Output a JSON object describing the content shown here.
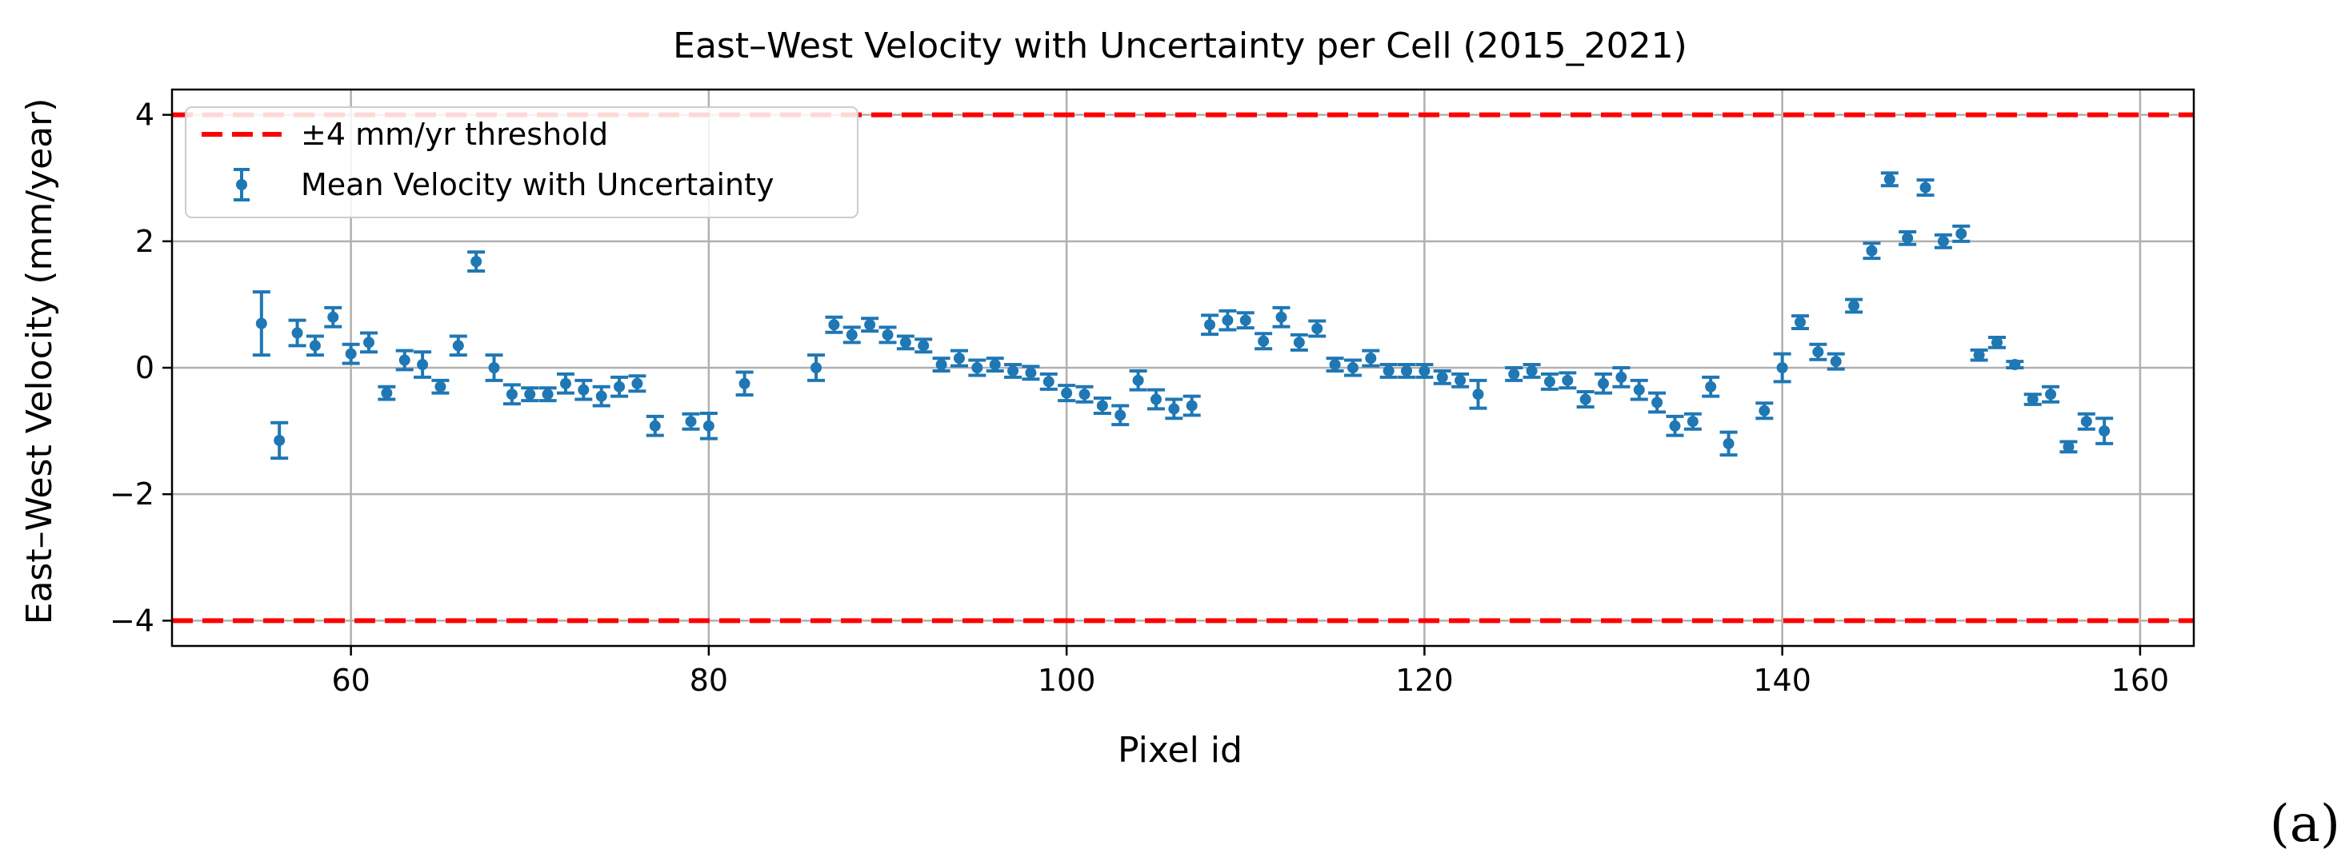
{
  "chart_data": {
    "type": "scatter",
    "title": "East–West Velocity with Uncertainty per Cell (2015_2021)",
    "xlabel": "Pixel id",
    "ylabel": "East–West Velocity (mm/year)",
    "xlim": [
      50,
      163
    ],
    "ylim": [
      -4.4,
      4.4
    ],
    "xticks": [
      60,
      80,
      100,
      120,
      140,
      160
    ],
    "yticks": [
      -4,
      -2,
      0,
      2,
      4
    ],
    "grid": true,
    "legend_position": "top-left",
    "panel_label": "(a)",
    "thresholds": {
      "label": "±4 mm/yr threshold",
      "values": [
        4,
        -4
      ],
      "color": "#ff0000"
    },
    "series": [
      {
        "name": "Mean Velocity with Uncertainty",
        "color": "#1f77b4",
        "x": [
          55,
          56,
          57,
          58,
          59,
          60,
          61,
          62,
          63,
          64,
          65,
          66,
          67,
          68,
          69,
          70,
          71,
          72,
          73,
          74,
          75,
          76,
          77,
          79,
          80,
          82,
          86,
          87,
          88,
          89,
          90,
          91,
          92,
          93,
          94,
          95,
          96,
          97,
          98,
          99,
          100,
          101,
          102,
          103,
          104,
          105,
          106,
          107,
          108,
          109,
          110,
          111,
          112,
          113,
          114,
          115,
          116,
          117,
          118,
          119,
          120,
          121,
          122,
          123,
          125,
          126,
          127,
          128,
          129,
          130,
          131,
          132,
          133,
          134,
          135,
          136,
          137,
          139,
          140,
          141,
          142,
          143,
          144,
          145,
          146,
          147,
          148,
          149,
          150,
          151,
          152,
          153,
          154,
          155,
          156,
          157,
          158
        ],
        "y": [
          0.7,
          -1.15,
          0.55,
          0.35,
          0.8,
          0.22,
          0.4,
          -0.4,
          0.12,
          0.05,
          -0.3,
          0.35,
          1.68,
          0.0,
          -0.42,
          -0.42,
          -0.42,
          -0.25,
          -0.35,
          -0.45,
          -0.3,
          -0.25,
          -0.92,
          -0.85,
          -0.92,
          -0.25,
          0.0,
          0.68,
          0.52,
          0.68,
          0.52,
          0.4,
          0.35,
          0.05,
          0.15,
          0.0,
          0.05,
          -0.05,
          -0.08,
          -0.22,
          -0.4,
          -0.42,
          -0.6,
          -0.75,
          -0.2,
          -0.5,
          -0.65,
          -0.6,
          0.68,
          0.75,
          0.75,
          0.42,
          0.8,
          0.4,
          0.62,
          0.05,
          0.0,
          0.15,
          -0.05,
          -0.05,
          -0.05,
          -0.15,
          -0.2,
          -0.42,
          -0.1,
          -0.05,
          -0.22,
          -0.2,
          -0.5,
          -0.25,
          -0.15,
          -0.35,
          -0.55,
          -0.92,
          -0.85,
          -0.3,
          -1.2,
          -0.68,
          0.0,
          0.72,
          0.25,
          0.1,
          0.98,
          1.85,
          2.98,
          2.05,
          2.85,
          2.0,
          2.12,
          0.2,
          0.4,
          0.05,
          -0.5,
          -0.42,
          -1.25,
          -0.85,
          -1.0
        ],
        "err": [
          0.5,
          0.28,
          0.2,
          0.15,
          0.15,
          0.15,
          0.15,
          0.1,
          0.15,
          0.2,
          0.1,
          0.15,
          0.15,
          0.2,
          0.15,
          0.1,
          0.1,
          0.15,
          0.15,
          0.15,
          0.15,
          0.12,
          0.15,
          0.12,
          0.2,
          0.18,
          0.2,
          0.12,
          0.12,
          0.1,
          0.12,
          0.1,
          0.1,
          0.1,
          0.12,
          0.12,
          0.1,
          0.1,
          0.1,
          0.12,
          0.12,
          0.12,
          0.12,
          0.15,
          0.15,
          0.15,
          0.15,
          0.15,
          0.15,
          0.15,
          0.12,
          0.12,
          0.15,
          0.12,
          0.12,
          0.1,
          0.12,
          0.12,
          0.1,
          0.1,
          0.1,
          0.1,
          0.1,
          0.22,
          0.1,
          0.1,
          0.12,
          0.12,
          0.12,
          0.15,
          0.15,
          0.15,
          0.15,
          0.15,
          0.12,
          0.15,
          0.18,
          0.12,
          0.22,
          0.1,
          0.12,
          0.12,
          0.1,
          0.12,
          0.1,
          0.1,
          0.12,
          0.1,
          0.12,
          0.08,
          0.08,
          0.05,
          0.08,
          0.12,
          0.08,
          0.12,
          0.2
        ]
      }
    ]
  }
}
